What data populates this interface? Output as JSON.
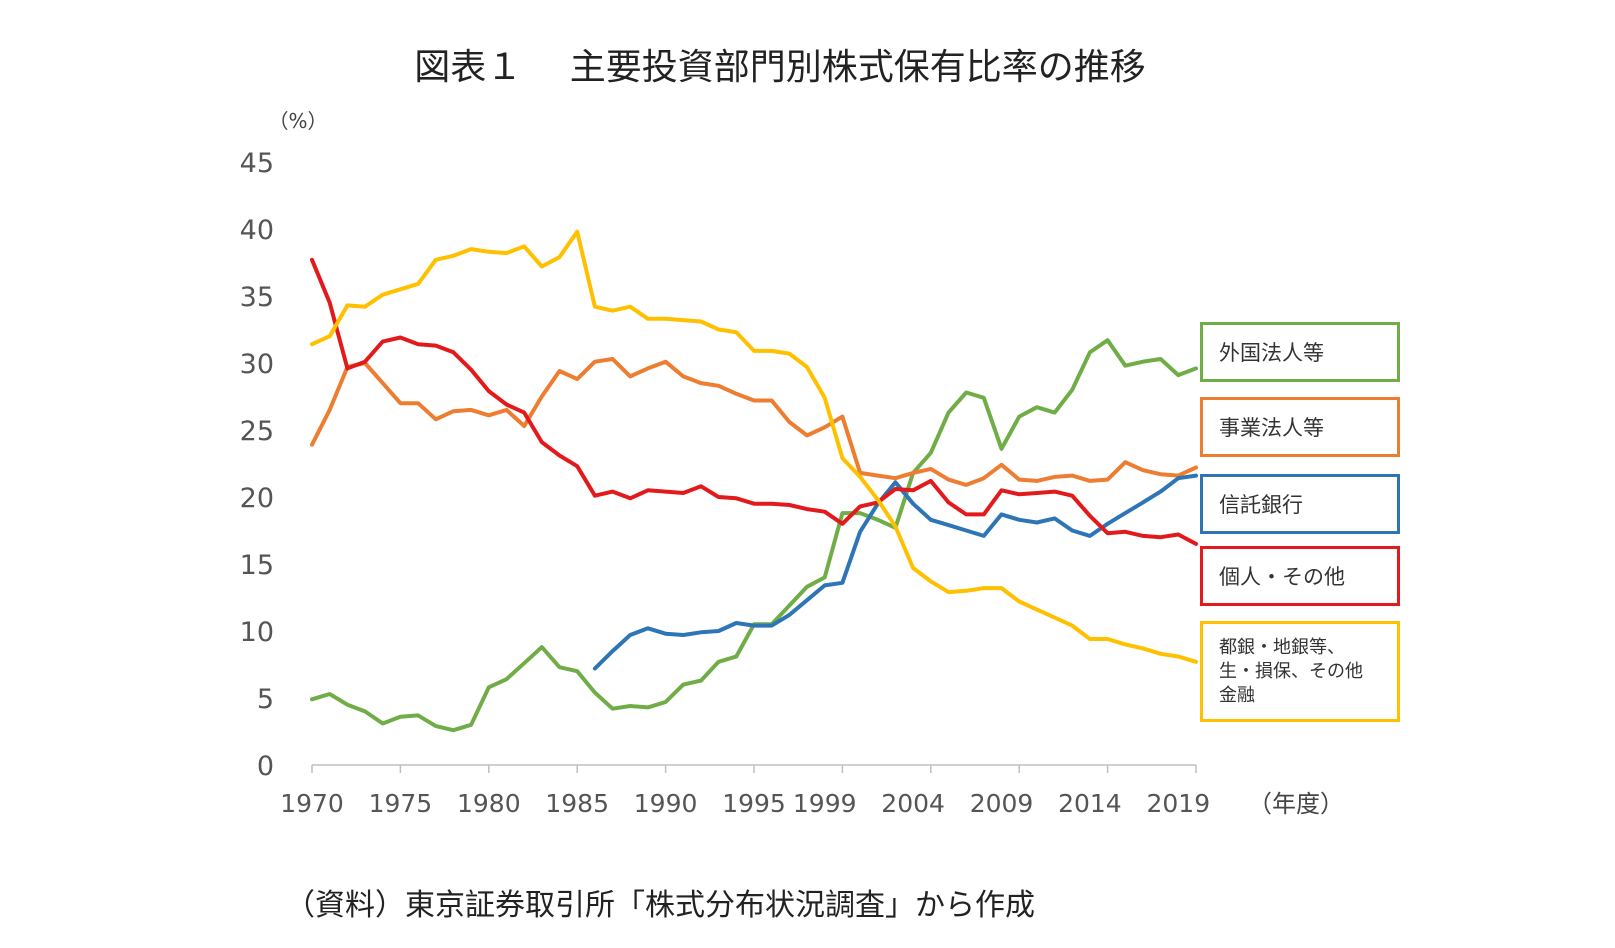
{
  "chart_data": {
    "type": "line",
    "title": "図表１　 主要投資部門別株式保有比率の推移",
    "ylabel": "（%）",
    "xlabel": "（年度）",
    "ylim": [
      0,
      45
    ],
    "yticks": [
      "0",
      "5",
      "10",
      "15",
      "20",
      "25",
      "30",
      "35",
      "40",
      "45"
    ],
    "xtick_labels": [
      "1970",
      "1975",
      "1980",
      "1985",
      "1990",
      "1995",
      "1999",
      "2004",
      "2009",
      "2014",
      "2019"
    ],
    "x": [
      1970,
      1971,
      1972,
      1973,
      1974,
      1975,
      1976,
      1977,
      1978,
      1979,
      1980,
      1981,
      1982,
      1983,
      1984,
      1985,
      1986,
      1987,
      1988,
      1989,
      1990,
      1991,
      1992,
      1993,
      1994,
      1995,
      1996,
      1997,
      1998,
      1999,
      2000,
      2001,
      2002,
      2003,
      2004,
      2005,
      2006,
      2007,
      2008,
      2009,
      2010,
      2011,
      2012,
      2013,
      2014,
      2015,
      2016,
      2017,
      2018,
      2019,
      2020
    ],
    "series": [
      {
        "name": "外国法人等",
        "legend_lines": [
          "外国法人等"
        ],
        "color": "#70AD47",
        "values": [
          4.9,
          5.3,
          4.5,
          4.0,
          3.1,
          3.6,
          3.7,
          2.9,
          2.6,
          3.0,
          5.8,
          6.4,
          7.6,
          8.8,
          7.3,
          7.0,
          5.4,
          4.2,
          4.4,
          4.3,
          4.7,
          6.0,
          6.3,
          7.7,
          8.1,
          10.5,
          10.5,
          11.9,
          13.3,
          14.0,
          18.8,
          18.8,
          18.3,
          17.7,
          21.8,
          23.3,
          26.3,
          27.8,
          27.4,
          23.6,
          26.0,
          26.7,
          26.3,
          28.0,
          30.8,
          31.7,
          29.8,
          30.1,
          30.3,
          29.1,
          29.6
        ]
      },
      {
        "name": "事業法人等",
        "legend_lines": [
          "事業法人等"
        ],
        "color": "#ED7D31",
        "values": [
          23.9,
          26.5,
          29.7,
          30.0,
          28.5,
          27.0,
          27.0,
          25.8,
          26.4,
          26.5,
          26.1,
          26.5,
          25.3,
          27.5,
          29.4,
          28.8,
          30.1,
          30.3,
          29.0,
          29.6,
          30.1,
          29.0,
          28.5,
          28.3,
          27.7,
          27.2,
          27.2,
          25.6,
          24.6,
          25.2,
          26.0,
          21.8,
          21.6,
          21.4,
          21.8,
          22.1,
          21.3,
          20.9,
          21.4,
          22.4,
          21.3,
          21.2,
          21.5,
          21.6,
          21.2,
          21.3,
          22.6,
          22.0,
          21.7,
          21.6,
          22.2
        ]
      },
      {
        "name": "信託銀行",
        "legend_lines": [
          "信託銀行"
        ],
        "color": "#2E75B6",
        "values": [
          null,
          null,
          null,
          null,
          null,
          null,
          null,
          null,
          null,
          null,
          null,
          null,
          null,
          null,
          null,
          null,
          7.2,
          8.5,
          9.7,
          10.2,
          9.8,
          9.7,
          9.9,
          10.0,
          10.6,
          10.4,
          10.4,
          11.2,
          12.3,
          13.4,
          13.6,
          17.4,
          19.5,
          21.1,
          19.5,
          18.3,
          17.9,
          17.5,
          17.1,
          18.7,
          18.3,
          18.1,
          18.4,
          17.5,
          17.1,
          18.0,
          18.8,
          19.6,
          20.4,
          21.4,
          21.6
        ]
      },
      {
        "name": "個人・その他",
        "legend_lines": [
          "個人・その他"
        ],
        "color": "#E31A1C",
        "values": [
          37.7,
          34.5,
          29.6,
          30.1,
          31.6,
          31.9,
          31.4,
          31.3,
          30.8,
          29.5,
          27.9,
          26.9,
          26.3,
          24.1,
          23.1,
          22.3,
          20.1,
          20.4,
          19.9,
          20.5,
          20.4,
          20.3,
          20.8,
          20.0,
          19.9,
          19.5,
          19.5,
          19.4,
          19.1,
          18.9,
          18.0,
          19.3,
          19.6,
          20.6,
          20.5,
          21.2,
          19.6,
          18.7,
          18.7,
          20.5,
          20.2,
          20.3,
          20.4,
          20.1,
          18.6,
          17.3,
          17.4,
          17.1,
          17.0,
          17.2,
          16.5
        ]
      },
      {
        "name": "都銀・地銀等、生・損保、その他金融",
        "legend_lines": [
          "都銀・地銀等、",
          "生・損保、その他",
          "金融"
        ],
        "color": "#FFC000",
        "values": [
          31.4,
          32.0,
          34.3,
          34.2,
          35.1,
          35.5,
          35.9,
          37.7,
          38.0,
          38.5,
          38.3,
          38.2,
          38.7,
          37.2,
          37.9,
          39.8,
          34.2,
          33.9,
          34.2,
          33.3,
          33.3,
          33.2,
          33.1,
          32.5,
          32.3,
          30.9,
          30.9,
          30.7,
          29.7,
          27.4,
          22.9,
          21.5,
          19.8,
          17.8,
          14.7,
          13.7,
          12.9,
          13.0,
          13.2,
          13.2,
          12.2,
          11.6,
          11.0,
          10.4,
          9.4,
          9.4,
          9.0,
          8.7,
          8.3,
          8.1,
          7.7
        ]
      }
    ]
  },
  "source_note": "（資料）東京証券取引所「株式分布状況調査」から作成"
}
